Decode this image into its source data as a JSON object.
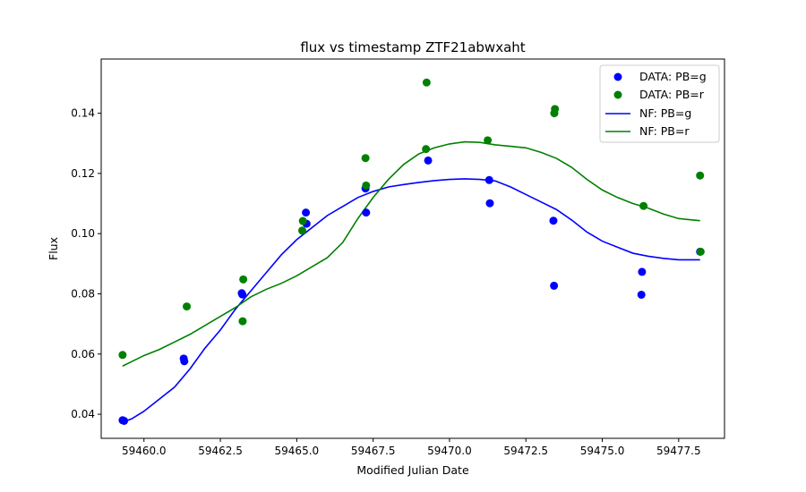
{
  "chart_data": {
    "type": "scatter",
    "title": "flux vs timestamp ZTF21abwxaht",
    "xlabel": "Modified Julian Date",
    "ylabel": "Flux",
    "xlim": [
      59458.6,
      59479.0
    ],
    "ylim": [
      0.032,
      0.158
    ],
    "xticks": [
      59460.0,
      59462.5,
      59465.0,
      59467.5,
      59470.0,
      59472.5,
      59475.0,
      59477.5
    ],
    "xtick_labels": [
      "59460.0",
      "59462.5",
      "59465.0",
      "59467.5",
      "59470.0",
      "59472.5",
      "59475.0",
      "59477.5"
    ],
    "yticks": [
      0.04,
      0.06,
      0.08,
      0.1,
      0.12,
      0.14
    ],
    "ytick_labels": [
      "0.04",
      "0.06",
      "0.08",
      "0.10",
      "0.12",
      "0.14"
    ],
    "grid": false,
    "legend_position": "top-right",
    "series": [
      {
        "name": "DATA: PB=g",
        "kind": "scatter",
        "color": "#0000ff",
        "points": [
          [
            59459.3,
            0.038
          ],
          [
            59459.35,
            0.0378
          ],
          [
            59461.3,
            0.0585
          ],
          [
            59461.32,
            0.0576
          ],
          [
            59463.2,
            0.0802
          ],
          [
            59463.22,
            0.0798
          ],
          [
            59465.3,
            0.107
          ],
          [
            59465.32,
            0.1033
          ],
          [
            59467.25,
            0.115
          ],
          [
            59467.27,
            0.107
          ],
          [
            59469.3,
            0.1243
          ],
          [
            59471.3,
            0.1178
          ],
          [
            59471.32,
            0.1101
          ],
          [
            59473.4,
            0.1043
          ],
          [
            59473.42,
            0.0827
          ],
          [
            59476.3,
            0.0873
          ],
          [
            59476.28,
            0.0797
          ],
          [
            59478.2,
            0.094
          ]
        ]
      },
      {
        "name": "DATA: PB=r",
        "kind": "scatter",
        "color": "#008000",
        "points": [
          [
            59459.3,
            0.0597
          ],
          [
            59461.4,
            0.0758
          ],
          [
            59463.25,
            0.0848
          ],
          [
            59463.23,
            0.0709
          ],
          [
            59465.2,
            0.1042
          ],
          [
            59465.18,
            0.101
          ],
          [
            59467.25,
            0.1251
          ],
          [
            59467.27,
            0.116
          ],
          [
            59469.25,
            0.1502
          ],
          [
            59469.23,
            0.1281
          ],
          [
            59471.25,
            0.131
          ],
          [
            59473.45,
            0.1414
          ],
          [
            59473.43,
            0.14
          ],
          [
            59476.35,
            0.1092
          ],
          [
            59478.2,
            0.1193
          ],
          [
            59478.22,
            0.094
          ]
        ]
      },
      {
        "name": "NF: PB=g",
        "kind": "line",
        "color": "#0000ff",
        "points": [
          [
            59459.3,
            0.0373
          ],
          [
            59459.6,
            0.0385
          ],
          [
            59460.0,
            0.041
          ],
          [
            59460.5,
            0.045
          ],
          [
            59461.0,
            0.049
          ],
          [
            59461.5,
            0.055
          ],
          [
            59462.0,
            0.062
          ],
          [
            59462.5,
            0.068
          ],
          [
            59463.0,
            0.075
          ],
          [
            59463.5,
            0.081
          ],
          [
            59464.0,
            0.087
          ],
          [
            59464.5,
            0.093
          ],
          [
            59465.0,
            0.098
          ],
          [
            59465.5,
            0.102
          ],
          [
            59466.0,
            0.106
          ],
          [
            59466.5,
            0.109
          ],
          [
            59467.0,
            0.112
          ],
          [
            59467.5,
            0.114
          ],
          [
            59468.0,
            0.1155
          ],
          [
            59468.5,
            0.1163
          ],
          [
            59469.0,
            0.117
          ],
          [
            59469.5,
            0.1176
          ],
          [
            59470.0,
            0.118
          ],
          [
            59470.5,
            0.1182
          ],
          [
            59471.0,
            0.118
          ],
          [
            59471.5,
            0.1175
          ],
          [
            59472.0,
            0.1155
          ],
          [
            59472.5,
            0.113
          ],
          [
            59473.0,
            0.1105
          ],
          [
            59473.5,
            0.108
          ],
          [
            59474.0,
            0.1045
          ],
          [
            59474.5,
            0.1005
          ],
          [
            59475.0,
            0.0975
          ],
          [
            59475.5,
            0.0955
          ],
          [
            59476.0,
            0.0935
          ],
          [
            59476.5,
            0.0925
          ],
          [
            59477.0,
            0.0918
          ],
          [
            59477.5,
            0.0913
          ],
          [
            59478.2,
            0.0913
          ]
        ]
      },
      {
        "name": "NF: PB=r",
        "kind": "line",
        "color": "#008000",
        "points": [
          [
            59459.3,
            0.056
          ],
          [
            59459.6,
            0.0575
          ],
          [
            59460.0,
            0.0595
          ],
          [
            59460.5,
            0.0615
          ],
          [
            59461.0,
            0.064
          ],
          [
            59461.5,
            0.0665
          ],
          [
            59462.0,
            0.0695
          ],
          [
            59462.5,
            0.0725
          ],
          [
            59463.0,
            0.0755
          ],
          [
            59463.5,
            0.079
          ],
          [
            59464.0,
            0.0815
          ],
          [
            59464.5,
            0.0835
          ],
          [
            59465.0,
            0.086
          ],
          [
            59465.5,
            0.089
          ],
          [
            59466.0,
            0.092
          ],
          [
            59466.5,
            0.097
          ],
          [
            59467.0,
            0.105
          ],
          [
            59467.5,
            0.112
          ],
          [
            59468.0,
            0.118
          ],
          [
            59468.5,
            0.123
          ],
          [
            59469.0,
            0.1265
          ],
          [
            59469.5,
            0.1285
          ],
          [
            59470.0,
            0.1298
          ],
          [
            59470.5,
            0.1305
          ],
          [
            59471.0,
            0.1303
          ],
          [
            59471.5,
            0.1295
          ],
          [
            59472.0,
            0.129
          ],
          [
            59472.5,
            0.1285
          ],
          [
            59473.0,
            0.127
          ],
          [
            59473.5,
            0.125
          ],
          [
            59474.0,
            0.122
          ],
          [
            59474.5,
            0.118
          ],
          [
            59475.0,
            0.1145
          ],
          [
            59475.5,
            0.112
          ],
          [
            59476.0,
            0.11
          ],
          [
            59476.5,
            0.1085
          ],
          [
            59477.0,
            0.1065
          ],
          [
            59477.5,
            0.105
          ],
          [
            59478.2,
            0.1043
          ]
        ]
      }
    ]
  }
}
